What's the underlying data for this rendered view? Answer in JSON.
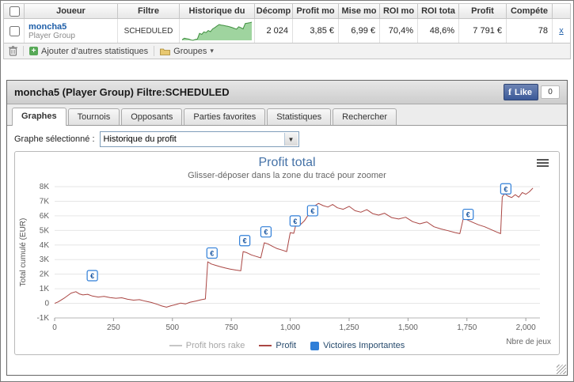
{
  "table": {
    "columns": [
      "Joueur",
      "Filtre",
      "Historique du",
      "Décomp",
      "Profit mo",
      "Mise mo",
      "ROI mo",
      "ROI tota",
      "Profit",
      "Compéte"
    ],
    "row": {
      "player": "moncha5",
      "group": "Player Group",
      "filter": "SCHEDULED",
      "games": "2 024",
      "avg_profit": "3,85 €",
      "avg_stake": "6,99 €",
      "avg_roi": "70,4%",
      "total_roi": "48,6%",
      "profit": "7 791 €",
      "ability": "78",
      "close": "x",
      "sparkline": [
        0,
        700,
        500,
        350,
        -100,
        -260,
        100,
        300,
        2850,
        2400,
        3550,
        3200,
        4150,
        3650,
        4850,
        5450,
        6150,
        6850,
        6600,
        6450,
        6250,
        6050,
        5780,
        5450,
        5100,
        4780,
        5850,
        5380,
        4900,
        7300,
        7450,
        7600,
        7900
      ]
    },
    "toolbar": {
      "add_stats": "Ajouter d’autres statistiques",
      "groups": "Groupes"
    }
  },
  "panel": {
    "title": "moncha5 (Player Group) Filtre:SCHEDULED",
    "fb_like": "Like",
    "fb_count": "0",
    "tabs": [
      {
        "label": "Graphes"
      },
      {
        "label": "Tournois"
      },
      {
        "label": "Opposants"
      },
      {
        "label": "Parties favorites"
      },
      {
        "label": "Statistiques"
      },
      {
        "label": "Rechercher"
      }
    ],
    "graph_select_label": "Graphe sélectionné :",
    "graph_selected": "Historique du profit"
  },
  "chart_data": {
    "type": "line",
    "title": "Profit total",
    "subtitle": "Glisser-déposer dans la zone du tracé pour zoomer",
    "ylabel": "Total cumulé (EUR)",
    "xlabel": "Nbre de jeux",
    "xlim": [
      0,
      2060
    ],
    "ylim": [
      -1000,
      8000
    ],
    "grid": "horizontal",
    "legend_position": "bottom",
    "xticks": [
      {
        "v": 0,
        "label": "0"
      },
      {
        "v": 250,
        "label": "250"
      },
      {
        "v": 500,
        "label": "500"
      },
      {
        "v": 750,
        "label": "750"
      },
      {
        "v": 1000,
        "label": "1,000"
      },
      {
        "v": 1250,
        "label": "1,250"
      },
      {
        "v": 1500,
        "label": "1,500"
      },
      {
        "v": 1750,
        "label": "1,750"
      },
      {
        "v": 2000,
        "label": "2,000"
      }
    ],
    "yticks": [
      {
        "v": -1000,
        "label": "-1K"
      },
      {
        "v": 0,
        "label": "0"
      },
      {
        "v": 1000,
        "label": "1K"
      },
      {
        "v": 2000,
        "label": "2K"
      },
      {
        "v": 3000,
        "label": "3K"
      },
      {
        "v": 4000,
        "label": "4K"
      },
      {
        "v": 5000,
        "label": "5K"
      },
      {
        "v": 6000,
        "label": "6K"
      },
      {
        "v": 7000,
        "label": "7K"
      },
      {
        "v": 8000,
        "label": "8K"
      }
    ],
    "legend": [
      {
        "label": "Profit hors rake",
        "type": "line",
        "color": "#c6c6c6",
        "visible": false
      },
      {
        "label": "Profit",
        "type": "line",
        "color": "#AA4643",
        "visible": true
      },
      {
        "label": "Victoires Importantes",
        "type": "square",
        "color": "#2f7ed8",
        "visible": true
      }
    ],
    "series": [
      {
        "name": "Profit",
        "color": "#AA4643",
        "points": [
          [
            0,
            0
          ],
          [
            15,
            100
          ],
          [
            40,
            350
          ],
          [
            70,
            700
          ],
          [
            90,
            800
          ],
          [
            105,
            650
          ],
          [
            120,
            580
          ],
          [
            140,
            620
          ],
          [
            160,
            500
          ],
          [
            185,
            430
          ],
          [
            210,
            480
          ],
          [
            235,
            400
          ],
          [
            260,
            350
          ],
          [
            285,
            380
          ],
          [
            310,
            280
          ],
          [
            335,
            220
          ],
          [
            360,
            250
          ],
          [
            385,
            150
          ],
          [
            410,
            60
          ],
          [
            435,
            -60
          ],
          [
            455,
            -180
          ],
          [
            475,
            -260
          ],
          [
            495,
            -160
          ],
          [
            515,
            -80
          ],
          [
            535,
            20
          ],
          [
            555,
            -40
          ],
          [
            575,
            80
          ],
          [
            600,
            160
          ],
          [
            620,
            240
          ],
          [
            640,
            300
          ],
          [
            650,
            2850
          ],
          [
            665,
            2700
          ],
          [
            685,
            2600
          ],
          [
            705,
            2500
          ],
          [
            725,
            2420
          ],
          [
            745,
            2350
          ],
          [
            770,
            2280
          ],
          [
            790,
            2230
          ],
          [
            800,
            3550
          ],
          [
            815,
            3480
          ],
          [
            835,
            3320
          ],
          [
            855,
            3220
          ],
          [
            875,
            3120
          ],
          [
            890,
            4150
          ],
          [
            905,
            4080
          ],
          [
            925,
            3900
          ],
          [
            945,
            3750
          ],
          [
            965,
            3650
          ],
          [
            985,
            3550
          ],
          [
            1000,
            4850
          ],
          [
            1015,
            4800
          ],
          [
            1025,
            5450
          ],
          [
            1040,
            5350
          ],
          [
            1060,
            5650
          ],
          [
            1080,
            6150
          ],
          [
            1092,
            6050
          ],
          [
            1105,
            6700
          ],
          [
            1120,
            6850
          ],
          [
            1140,
            6700
          ],
          [
            1160,
            6600
          ],
          [
            1180,
            6780
          ],
          [
            1200,
            6550
          ],
          [
            1225,
            6450
          ],
          [
            1250,
            6650
          ],
          [
            1275,
            6350
          ],
          [
            1300,
            6250
          ],
          [
            1325,
            6420
          ],
          [
            1350,
            6150
          ],
          [
            1375,
            6050
          ],
          [
            1400,
            6180
          ],
          [
            1430,
            5880
          ],
          [
            1460,
            5780
          ],
          [
            1490,
            5900
          ],
          [
            1520,
            5600
          ],
          [
            1550,
            5450
          ],
          [
            1580,
            5580
          ],
          [
            1610,
            5250
          ],
          [
            1640,
            5100
          ],
          [
            1670,
            4980
          ],
          [
            1700,
            4850
          ],
          [
            1720,
            4780
          ],
          [
            1735,
            5850
          ],
          [
            1755,
            5700
          ],
          [
            1775,
            5550
          ],
          [
            1800,
            5380
          ],
          [
            1825,
            5250
          ],
          [
            1850,
            5080
          ],
          [
            1875,
            4900
          ],
          [
            1893,
            4780
          ],
          [
            1900,
            7300
          ],
          [
            1910,
            7520
          ],
          [
            1925,
            7350
          ],
          [
            1940,
            7250
          ],
          [
            1955,
            7450
          ],
          [
            1970,
            7280
          ],
          [
            1985,
            7600
          ],
          [
            2000,
            7480
          ],
          [
            2015,
            7650
          ],
          [
            2030,
            7900
          ]
        ]
      }
    ],
    "markers": {
      "name": "Victoires Importantes",
      "symbol": "€",
      "color": "#2f7ed8",
      "text_color": "#1a56a0",
      "points": [
        [
          160,
          1900
        ],
        [
          668,
          3450
        ],
        [
          807,
          4300
        ],
        [
          897,
          4900
        ],
        [
          1021,
          5650
        ],
        [
          1095,
          6350
        ],
        [
          1755,
          6100
        ],
        [
          1915,
          7850
        ]
      ]
    }
  }
}
